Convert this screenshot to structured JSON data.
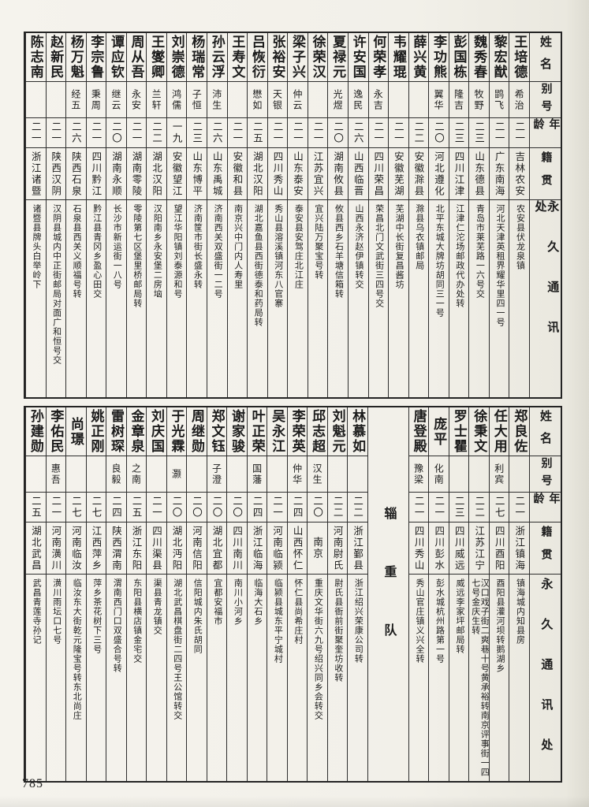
{
  "page_number": "785",
  "headers": {
    "name": "姓名",
    "alias": "别号",
    "age": "年龄",
    "native": "籍贯",
    "address": "永久通讯处"
  },
  "divider_label": "辎重队",
  "table_top": {
    "people": [
      {
        "name": "王培德",
        "alias": "希治",
        "age": "二一",
        "native": "吉林农安",
        "address": "农安县伏龙泉镇"
      },
      {
        "name": "黎宏猷",
        "alias": "鹍飞",
        "age": "二一",
        "native": "广东南海",
        "address": "河北天津英租界耀华里四一号"
      },
      {
        "name": "魏秀春",
        "alias": "牧野",
        "age": "二三",
        "native": "山东德县",
        "address": "青岛市莱芜路一六号交"
      },
      {
        "name": "彭国栋",
        "alias": "隆吉",
        "age": "二三",
        "native": "四川江津",
        "address": "江津仁沱场邮政代办处转"
      },
      {
        "name": "李功熊",
        "alias": "翼华",
        "age": "二〇",
        "native": "河北遵化",
        "address": "北平东城大牌坊胡同三一号"
      },
      {
        "name": "薛兴黄",
        "alias": "",
        "age": "二二",
        "native": "安徽滁县",
        "address": "滁县乌衣镇邮局"
      },
      {
        "name": "韦耀琨",
        "alias": "",
        "age": "二一",
        "native": "安徽芜湖",
        "address": "芜湖中长街复昌酱坊"
      },
      {
        "name": "何荣孝",
        "alias": "永吉",
        "age": "二一",
        "native": "四川荣昌",
        "address": "荣昌北门文武街三四号交"
      },
      {
        "name": "许安国",
        "alias": "逸民",
        "age": "二六",
        "native": "山西临晋",
        "address": "山西永济赵伊镇转交"
      },
      {
        "name": "夏禄元",
        "alias": "光煜",
        "age": "二〇",
        "native": "湖南攸县",
        "address": "攸县西乡石羊塘信箱转"
      },
      {
        "name": "徐荣汉",
        "alias": "",
        "age": "二一",
        "native": "江苏宜兴",
        "address": "宜兴陆万聚宝号转"
      },
      {
        "name": "梁子兴",
        "alias": "仲云",
        "age": "二一",
        "native": "山东泰安",
        "address": "泰安县安驾庄北江庄"
      },
      {
        "name": "张裕安",
        "alias": "天银",
        "age": "二一",
        "native": "四川秀山",
        "address": "秀山县溶溪镇河东八官寨"
      },
      {
        "name": "吕恢衍",
        "alias": "懋如",
        "age": "二五",
        "native": "湖北汉阳",
        "address": "湖北嘉鱼县西街德泰和药局转"
      },
      {
        "name": "王寿文",
        "alias": "",
        "age": "二一",
        "native": "安徽和县",
        "address": "南京兴中门内人寿里"
      },
      {
        "name": "孙云浮",
        "alias": "沛生",
        "age": "二六",
        "native": "山东禹城",
        "address": "济南西关双盛街一二号"
      },
      {
        "name": "杨瑞常",
        "alias": "子恒",
        "age": "二三",
        "native": "山东博平",
        "address": "济南筐市街长盛永转"
      },
      {
        "name": "刘崇德",
        "alias": "鸿儒",
        "age": "一九",
        "native": "安徽望江",
        "address": "望江华阳镇刘泰源和号"
      },
      {
        "name": "王燮卿",
        "alias": "兰轩",
        "age": "二二",
        "native": "湖北汉阳",
        "address": "汉阳南乡永安堡二房垴"
      },
      {
        "name": "周从吾",
        "alias": "永安",
        "age": "二一",
        "native": "湖南零陵",
        "address": "零陵第七区堡里桥邮局转"
      },
      {
        "name": "谭应钦",
        "alias": "继云",
        "age": "二〇",
        "native": "湖南永顺",
        "address": "长沙市新运街一八号"
      },
      {
        "name": "李宗鲁",
        "alias": "秉周",
        "age": "二一",
        "native": "四川黔江",
        "address": "黔江县青冈乡盈心田交"
      },
      {
        "name": "杨万魁",
        "alias": "经五",
        "age": "二六",
        "native": "陕西石泉",
        "address": "石泉县西关义顺福号转"
      },
      {
        "name": "赵新民",
        "alias": "",
        "age": "二一",
        "native": "陕西汉阴",
        "address": "汉阴县城内中正街邮局对面广和恒号交"
      },
      {
        "name": "陈志南",
        "alias": "",
        "age": "二一",
        "native": "浙江诸暨",
        "address": "诸暨县牌头白举岭下"
      }
    ]
  },
  "table_bottom": {
    "right_people": [
      {
        "name": "郑良佐",
        "alias": "",
        "age": "二一",
        "native": "浙江镇海",
        "address": "镇海城内知县房"
      },
      {
        "name": "任大用",
        "alias": "利宾",
        "age": "二七",
        "native": "四川酉阳",
        "address": "酉阳县灌河坝转鹅湖乡"
      },
      {
        "name": "徐秉文",
        "alias": "",
        "age": "二二",
        "native": "江苏江宁",
        "address": "汉口戏子街二爽巷十号黄承裕转南京评事街一四七号金庆生转"
      },
      {
        "name": "罗士瞿",
        "alias": "",
        "age": "二三",
        "native": "四川威远",
        "address": "威远李家坪邮局转"
      },
      {
        "name": "庞平",
        "alias": "化南",
        "age": "二一",
        "native": "四川彭水",
        "address": "彭水城杭州路第一号"
      },
      {
        "name": "唐登殿",
        "alias": "豫梁",
        "age": "二一",
        "native": "四川秀山",
        "address": "秀山官庄镇义兴全转"
      }
    ],
    "left_people": [
      {
        "name": "林慕如",
        "alias": "",
        "age": "二二",
        "native": "浙江鄞县",
        "address": "浙江绍兴荣康公司转"
      },
      {
        "name": "刘魁元",
        "alias": "",
        "age": "二二",
        "native": "河南尉氏",
        "address": "尉氏县衙前街聚奎坊收转"
      },
      {
        "name": "邱志超",
        "alias": "汉生",
        "age": "二〇",
        "native": "南京",
        "address": "重庆文华街六九号绍兴同乡会转交"
      },
      {
        "name": "李荣英",
        "alias": "仲华",
        "age": "二四",
        "native": "山西怀仁",
        "address": "怀仁县尚希庄村"
      },
      {
        "name": "吴永江",
        "alias": "",
        "age": "二一",
        "native": "河南临颍",
        "address": "临颍县城东平宁城村"
      },
      {
        "name": "叶正荣",
        "alias": "国藩",
        "age": "二四",
        "native": "浙江临海",
        "address": "临海大石乡"
      },
      {
        "name": "谢家骏",
        "alias": "",
        "age": "二〇",
        "native": "四川南川",
        "address": "南川小河乡"
      },
      {
        "name": "郑文钰",
        "alias": "子澄",
        "age": "二〇",
        "native": "湖北宜都",
        "address": "宜都安福市"
      },
      {
        "name": "周继勋",
        "alias": "",
        "age": "二〇",
        "native": "河南信阳",
        "address": "信阳城内朱氏胡同"
      },
      {
        "name": "于光霖",
        "alias": "灏",
        "age": "二〇",
        "native": "湖北沔阳",
        "address": "湖北武昌棋盘街二四号王公馆转交"
      },
      {
        "name": "刘庆国",
        "alias": "",
        "age": "二一",
        "native": "四川渠县",
        "address": "渠县青龙镇交"
      },
      {
        "name": "金章泉",
        "alias": "之南",
        "age": "二五",
        "native": "浙江东阳",
        "address": "东阳县横店镇金宅交"
      },
      {
        "name": "雷树琛",
        "alias": "良毅",
        "age": "二四",
        "native": "陕西渭南",
        "address": "渭南西门口双盛合号转"
      },
      {
        "name": "姚正刚",
        "alias": "",
        "age": "二七",
        "native": "江西萍乡",
        "address": "萍乡茶花树下三号"
      },
      {
        "name": "尚璟",
        "alias": "",
        "age": "二七",
        "native": "河南临汝",
        "address": "临汝东大街乾元隆宝号转东北尚庄"
      },
      {
        "name": "李佑民",
        "alias": "惠吾",
        "age": "二一",
        "native": "河南潢川",
        "address": "潢川雨坛口七号"
      },
      {
        "name": "孙建勋",
        "alias": "",
        "age": "二五",
        "native": "湖北武昌",
        "address": "武昌青莲寺孙记"
      }
    ]
  }
}
